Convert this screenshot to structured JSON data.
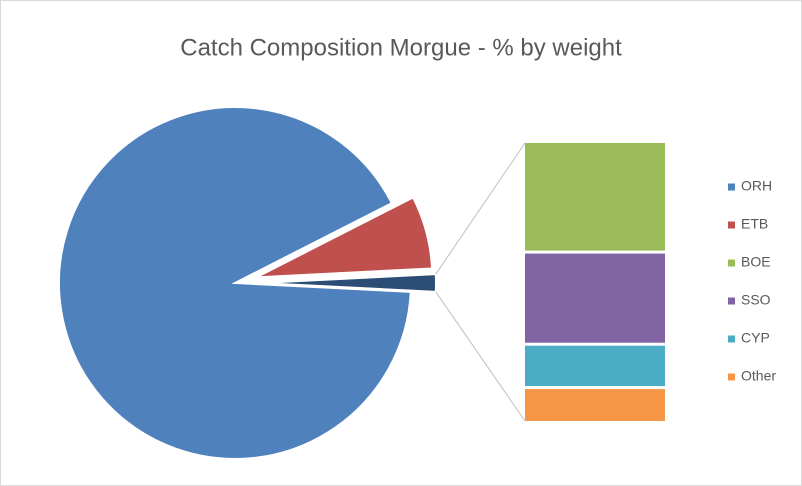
{
  "chart_data": {
    "type": "bar_of_pie",
    "title": "Catch Composition Morgue - % by weight",
    "categories": [
      "ORH",
      "ETB",
      "BOE",
      "SSO",
      "CYP",
      "Other"
    ],
    "values": [
      91.7,
      6.7,
      0.64,
      0.53,
      0.24,
      0.19
    ],
    "colors": [
      "#4f81bd",
      "#c0504d",
      "#9bbb59",
      "#8064a2",
      "#4bacc6",
      "#f79646"
    ],
    "second_plot_count": 4,
    "group_color": "#2c4d75",
    "legend": "right"
  }
}
